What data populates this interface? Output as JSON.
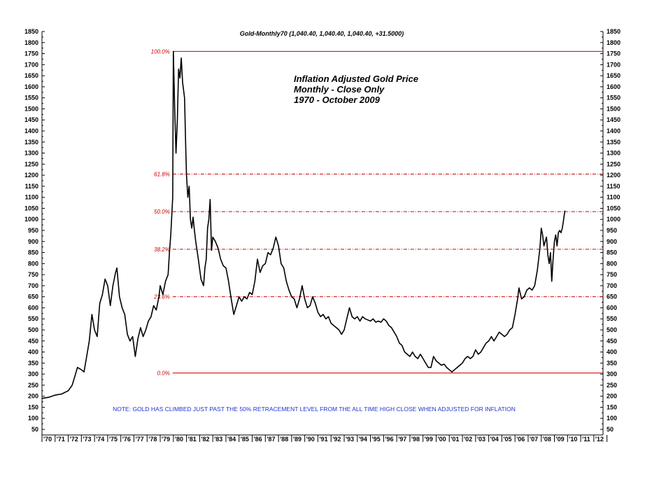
{
  "chart_data": {
    "type": "line",
    "header": "Gold-Monthly70 (1,040.40, 1,040.40, 1,040.40, +31.5000)",
    "title_lines": [
      "Inflation Adjusted Gold Price",
      "Monthly - Close Only",
      "1970 - October 2009"
    ],
    "note": "NOTE: GOLD HAS CLIMBED JUST PAST THE 50% RETRACEMENT LEVEL FROM THE ALL TIME HIGH CLOSE WHEN ADJUSTED FOR INFLATION",
    "ylim": [
      50,
      1850
    ],
    "y_ticks": [
      50,
      100,
      150,
      200,
      250,
      300,
      350,
      400,
      450,
      500,
      550,
      600,
      650,
      700,
      750,
      800,
      850,
      900,
      950,
      1000,
      1050,
      1100,
      1150,
      1200,
      1250,
      1300,
      1350,
      1400,
      1450,
      1500,
      1550,
      1600,
      1650,
      1700,
      1750,
      1800,
      1850
    ],
    "x_ticks": [
      "70",
      "71",
      "72",
      "73",
      "74",
      "75",
      "76",
      "77",
      "78",
      "79",
      "80",
      "81",
      "82",
      "83",
      "84",
      "85",
      "86",
      "87",
      "88",
      "89",
      "90",
      "91",
      "92",
      "93",
      "94",
      "95",
      "96",
      "97",
      "98",
      "99",
      "00",
      "01",
      "02",
      "03",
      "04",
      "05",
      "06",
      "07",
      "08",
      "09",
      "10",
      "11",
      "12"
    ],
    "x_tick_labels": [
      "'70",
      "'71",
      "'72",
      "'73",
      "'74",
      "'75",
      "'76",
      "'77",
      "'78",
      "'79",
      "'80",
      "'81",
      "'82",
      "'83",
      "'84",
      "'85",
      "'86",
      "'87",
      "'88",
      "'89",
      "'90",
      "'91",
      "'92",
      "'93",
      "'94",
      "'95",
      "'96",
      "'97",
      "'98",
      "'99",
      "'00",
      "'01",
      "'02",
      "'03",
      "'04",
      "'05",
      "'06",
      "'07",
      "'08",
      "'09",
      "'10",
      "'11",
      "'12"
    ],
    "xlim": [
      1970,
      2012.7
    ],
    "series": [
      {
        "color": "#000000",
        "points": [
          [
            1970.0,
            190
          ],
          [
            1970.5,
            195
          ],
          [
            1971.0,
            205
          ],
          [
            1971.5,
            210
          ],
          [
            1972.0,
            225
          ],
          [
            1972.3,
            250
          ],
          [
            1972.5,
            290
          ],
          [
            1972.7,
            330
          ],
          [
            1973.0,
            320
          ],
          [
            1973.2,
            310
          ],
          [
            1973.4,
            380
          ],
          [
            1973.6,
            450
          ],
          [
            1973.8,
            570
          ],
          [
            1974.0,
            500
          ],
          [
            1974.2,
            470
          ],
          [
            1974.4,
            620
          ],
          [
            1974.6,
            660
          ],
          [
            1974.8,
            730
          ],
          [
            1975.0,
            700
          ],
          [
            1975.2,
            610
          ],
          [
            1975.4,
            700
          ],
          [
            1975.6,
            760
          ],
          [
            1975.7,
            780
          ],
          [
            1975.9,
            650
          ],
          [
            1976.1,
            600
          ],
          [
            1976.3,
            570
          ],
          [
            1976.5,
            480
          ],
          [
            1976.7,
            450
          ],
          [
            1976.9,
            470
          ],
          [
            1977.1,
            380
          ],
          [
            1977.3,
            460
          ],
          [
            1977.5,
            510
          ],
          [
            1977.7,
            470
          ],
          [
            1977.9,
            500
          ],
          [
            1978.1,
            540
          ],
          [
            1978.3,
            560
          ],
          [
            1978.5,
            610
          ],
          [
            1978.7,
            590
          ],
          [
            1978.9,
            650
          ],
          [
            1979.0,
            700
          ],
          [
            1979.2,
            660
          ],
          [
            1979.4,
            720
          ],
          [
            1979.6,
            750
          ],
          [
            1979.7,
            850
          ],
          [
            1979.8,
            930
          ],
          [
            1979.95,
            1100
          ],
          [
            1980.0,
            1760
          ],
          [
            1980.1,
            1500
          ],
          [
            1980.2,
            1300
          ],
          [
            1980.3,
            1450
          ],
          [
            1980.4,
            1680
          ],
          [
            1980.5,
            1640
          ],
          [
            1980.6,
            1730
          ],
          [
            1980.7,
            1620
          ],
          [
            1980.85,
            1550
          ],
          [
            1980.95,
            1300
          ],
          [
            1981.0,
            1200
          ],
          [
            1981.1,
            1100
          ],
          [
            1981.2,
            1150
          ],
          [
            1981.3,
            1000
          ],
          [
            1981.4,
            960
          ],
          [
            1981.5,
            1010
          ],
          [
            1981.6,
            950
          ],
          [
            1981.7,
            900
          ],
          [
            1981.9,
            820
          ],
          [
            1982.1,
            730
          ],
          [
            1982.3,
            700
          ],
          [
            1982.4,
            780
          ],
          [
            1982.5,
            820
          ],
          [
            1982.6,
            960
          ],
          [
            1982.7,
            1000
          ],
          [
            1982.8,
            1090
          ],
          [
            1982.9,
            860
          ],
          [
            1983.0,
            920
          ],
          [
            1983.2,
            900
          ],
          [
            1983.4,
            870
          ],
          [
            1983.6,
            820
          ],
          [
            1983.8,
            790
          ],
          [
            1984.0,
            780
          ],
          [
            1984.2,
            720
          ],
          [
            1984.4,
            640
          ],
          [
            1984.6,
            570
          ],
          [
            1984.8,
            610
          ],
          [
            1985.0,
            650
          ],
          [
            1985.2,
            630
          ],
          [
            1985.4,
            650
          ],
          [
            1985.6,
            640
          ],
          [
            1985.8,
            670
          ],
          [
            1986.0,
            660
          ],
          [
            1986.2,
            720
          ],
          [
            1986.4,
            820
          ],
          [
            1986.6,
            760
          ],
          [
            1986.8,
            790
          ],
          [
            1987.0,
            800
          ],
          [
            1987.2,
            850
          ],
          [
            1987.4,
            840
          ],
          [
            1987.6,
            870
          ],
          [
            1987.8,
            920
          ],
          [
            1988.0,
            880
          ],
          [
            1988.2,
            800
          ],
          [
            1988.4,
            780
          ],
          [
            1988.6,
            720
          ],
          [
            1988.8,
            680
          ],
          [
            1989.0,
            650
          ],
          [
            1989.2,
            640
          ],
          [
            1989.4,
            600
          ],
          [
            1989.6,
            640
          ],
          [
            1989.8,
            700
          ],
          [
            1990.0,
            640
          ],
          [
            1990.2,
            600
          ],
          [
            1990.4,
            610
          ],
          [
            1990.6,
            650
          ],
          [
            1990.8,
            620
          ],
          [
            1991.0,
            580
          ],
          [
            1991.2,
            560
          ],
          [
            1991.4,
            570
          ],
          [
            1991.6,
            550
          ],
          [
            1991.8,
            560
          ],
          [
            1992.0,
            530
          ],
          [
            1992.2,
            520
          ],
          [
            1992.4,
            510
          ],
          [
            1992.6,
            500
          ],
          [
            1992.8,
            480
          ],
          [
            1993.0,
            500
          ],
          [
            1993.2,
            550
          ],
          [
            1993.4,
            600
          ],
          [
            1993.6,
            560
          ],
          [
            1993.8,
            550
          ],
          [
            1994.0,
            560
          ],
          [
            1994.2,
            540
          ],
          [
            1994.4,
            560
          ],
          [
            1994.6,
            550
          ],
          [
            1994.8,
            545
          ],
          [
            1995.0,
            540
          ],
          [
            1995.2,
            550
          ],
          [
            1995.4,
            535
          ],
          [
            1995.6,
            540
          ],
          [
            1995.8,
            535
          ],
          [
            1996.0,
            550
          ],
          [
            1996.2,
            540
          ],
          [
            1996.4,
            520
          ],
          [
            1996.6,
            510
          ],
          [
            1996.8,
            490
          ],
          [
            1997.0,
            470
          ],
          [
            1997.2,
            440
          ],
          [
            1997.4,
            430
          ],
          [
            1997.6,
            400
          ],
          [
            1997.8,
            390
          ],
          [
            1998.0,
            380
          ],
          [
            1998.2,
            400
          ],
          [
            1998.4,
            380
          ],
          [
            1998.6,
            370
          ],
          [
            1998.8,
            390
          ],
          [
            1999.0,
            370
          ],
          [
            1999.2,
            350
          ],
          [
            1999.4,
            330
          ],
          [
            1999.6,
            330
          ],
          [
            1999.8,
            380
          ],
          [
            2000.0,
            360
          ],
          [
            2000.2,
            350
          ],
          [
            2000.4,
            340
          ],
          [
            2000.6,
            345
          ],
          [
            2000.8,
            330
          ],
          [
            2001.0,
            320
          ],
          [
            2001.2,
            310
          ],
          [
            2001.4,
            320
          ],
          [
            2001.6,
            330
          ],
          [
            2001.8,
            340
          ],
          [
            2002.0,
            350
          ],
          [
            2002.2,
            370
          ],
          [
            2002.4,
            380
          ],
          [
            2002.6,
            370
          ],
          [
            2002.8,
            380
          ],
          [
            2003.0,
            410
          ],
          [
            2003.2,
            390
          ],
          [
            2003.4,
            400
          ],
          [
            2003.6,
            420
          ],
          [
            2003.8,
            440
          ],
          [
            2004.0,
            450
          ],
          [
            2004.2,
            470
          ],
          [
            2004.4,
            450
          ],
          [
            2004.6,
            470
          ],
          [
            2004.8,
            490
          ],
          [
            2005.0,
            480
          ],
          [
            2005.2,
            470
          ],
          [
            2005.4,
            480
          ],
          [
            2005.6,
            500
          ],
          [
            2005.8,
            510
          ],
          [
            2006.0,
            570
          ],
          [
            2006.2,
            640
          ],
          [
            2006.3,
            690
          ],
          [
            2006.5,
            640
          ],
          [
            2006.7,
            650
          ],
          [
            2006.9,
            680
          ],
          [
            2007.1,
            690
          ],
          [
            2007.3,
            680
          ],
          [
            2007.5,
            700
          ],
          [
            2007.7,
            770
          ],
          [
            2007.9,
            870
          ],
          [
            2008.0,
            960
          ],
          [
            2008.1,
            930
          ],
          [
            2008.2,
            880
          ],
          [
            2008.4,
            920
          ],
          [
            2008.5,
            840
          ],
          [
            2008.6,
            800
          ],
          [
            2008.7,
            850
          ],
          [
            2008.8,
            720
          ],
          [
            2008.9,
            820
          ],
          [
            2009.0,
            900
          ],
          [
            2009.1,
            930
          ],
          [
            2009.2,
            880
          ],
          [
            2009.3,
            940
          ],
          [
            2009.4,
            950
          ],
          [
            2009.5,
            940
          ],
          [
            2009.6,
            960
          ],
          [
            2009.7,
            1000
          ],
          [
            2009.8,
            1040
          ]
        ]
      }
    ],
    "fib_levels": [
      {
        "value": 1760,
        "label": "100.0%",
        "style": "solid"
      },
      {
        "value": 1205,
        "label": "61.8%",
        "style": "dashed"
      },
      {
        "value": 1035,
        "label": "50.0%",
        "style": "dashed"
      },
      {
        "value": 865,
        "label": "38.2%",
        "style": "dashed"
      },
      {
        "value": 650,
        "label": "23.6%",
        "style": "dashed"
      },
      {
        "value": 305,
        "label": "0.0%",
        "style": "solid"
      }
    ],
    "fib_start_x": 1980.0,
    "colors": {
      "line": "#000000",
      "fib": "#cc0000",
      "note": "#2233cc"
    },
    "legend": "none",
    "grid": false
  }
}
